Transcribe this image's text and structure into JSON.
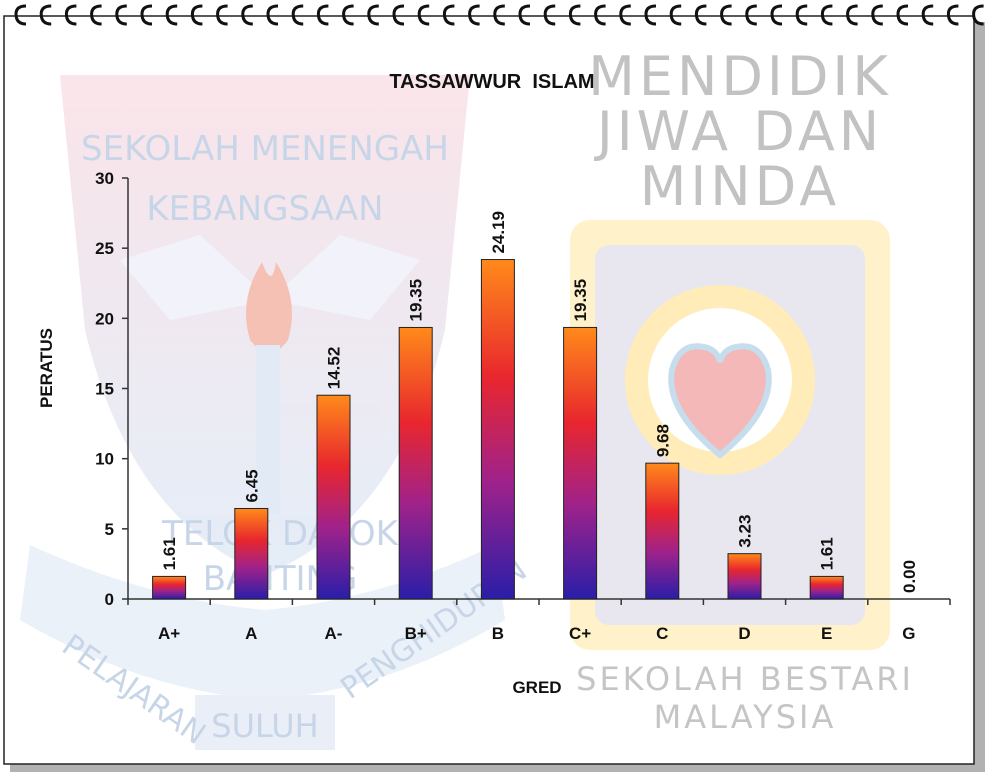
{
  "chart_data": {
    "type": "bar",
    "title": "TASSAWWUR  ISLAM",
    "xlabel": "GRED",
    "ylabel": "PERATUS",
    "categories": [
      "A+",
      "A",
      "A-",
      "B+",
      "B",
      "C+",
      "C",
      "D",
      "E",
      "G"
    ],
    "values": [
      1.61,
      6.45,
      14.52,
      19.35,
      24.19,
      19.35,
      9.68,
      3.23,
      1.61,
      0.0
    ],
    "value_labels": [
      "1.61",
      "6.45",
      "14.52",
      "19.35",
      "24.19",
      "19.35",
      "9.68",
      "3.23",
      "1.61",
      "0.00"
    ],
    "y_ticks": [
      0,
      5,
      10,
      15,
      20,
      25,
      30
    ],
    "ylim": [
      0,
      30
    ],
    "grid": false,
    "legend": "none",
    "colors": {
      "bar_top": "#ff7a1a",
      "bar_mid": "#c21c6e",
      "bar_bottom": "#2a1ea8",
      "text": "#111111"
    }
  },
  "watermark": {
    "left_crest": [
      "SEKOLAH MENENGAH",
      "KEBANGSAAN",
      "TELOK DATOK",
      "BANTING",
      "PELAJARAN",
      "PENGHIDUPAN",
      "SULUH"
    ],
    "right_slogan": [
      "MENDIDIK",
      "JIWA DAN",
      "MINDA"
    ],
    "right_footer": [
      "SEKOLAH BESTARI",
      "MALAYSIA"
    ],
    "icons": [
      "torch-icon",
      "heart-icon"
    ]
  },
  "frame": {
    "binding": "spiral-binding",
    "ring_count": 39
  }
}
